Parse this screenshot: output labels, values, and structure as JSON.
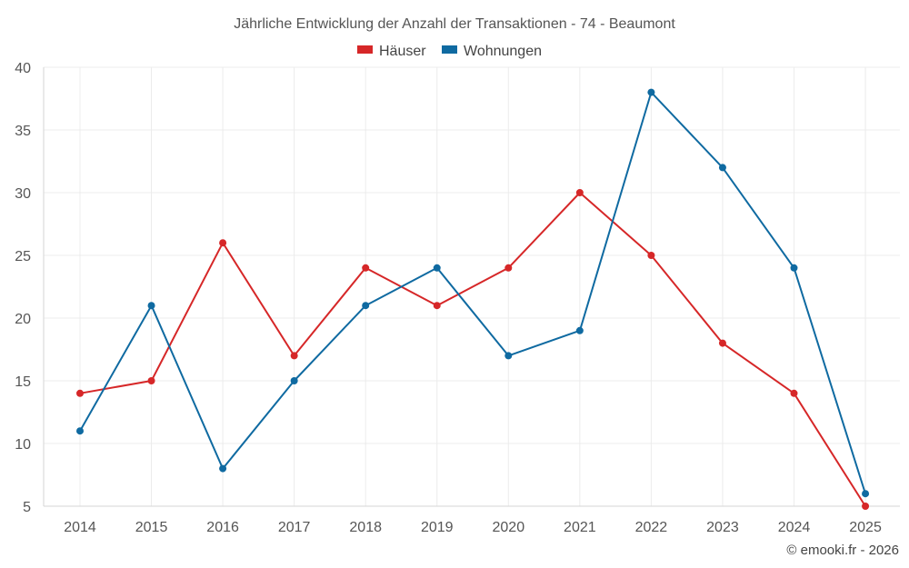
{
  "chart_data": {
    "type": "line",
    "title": "Jährliche Entwicklung der Anzahl der Transaktionen - 74 - Beaumont",
    "categories": [
      "2014",
      "2015",
      "2016",
      "2017",
      "2018",
      "2019",
      "2020",
      "2021",
      "2022",
      "2023",
      "2024",
      "2025"
    ],
    "series": [
      {
        "name": "Häuser",
        "color": "#d62728",
        "values": [
          14,
          15,
          26,
          17,
          24,
          21,
          24,
          30,
          25,
          18,
          14,
          5
        ]
      },
      {
        "name": "Wohnungen",
        "color": "#0f6aa1",
        "values": [
          11,
          21,
          8,
          15,
          21,
          24,
          17,
          19,
          38,
          32,
          24,
          6
        ]
      }
    ],
    "y_ticks": [
      "5",
      "10",
      "15",
      "20",
      "25",
      "30",
      "35",
      "40"
    ],
    "ylim": [
      5,
      40
    ],
    "grid": true,
    "legend_position": "top-center",
    "xlabel": "",
    "ylabel": ""
  },
  "credit": "© emooki.fr - 2026"
}
